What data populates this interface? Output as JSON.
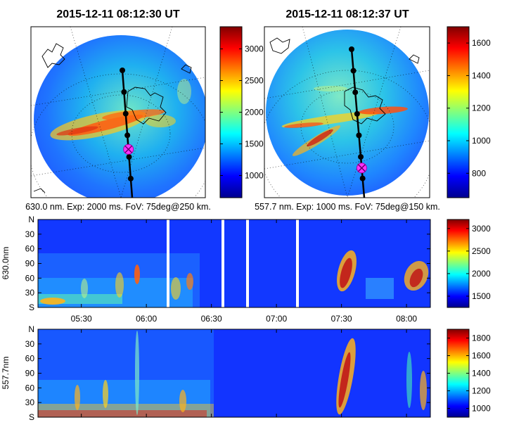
{
  "figure": {
    "titles": [
      "2015-12-11 08:12:30 UT",
      "2015-12-11 08:12:37 UT"
    ],
    "captions": [
      "630.0 nm. Exp: 2000 ms. FoV: 75deg@250 km.",
      "557.7 nm. Exp: 1000 ms. FoV: 75deg@150 km."
    ]
  },
  "chart_data": [
    {
      "type": "heatmap",
      "title": "2015-12-11 08:12:30 UT",
      "subtitle": "630.0 nm. Exp: 2000 ms. FoV: 75deg@250 km.",
      "colorbar_ticks": [
        "1000",
        "1500",
        "2000",
        "2500",
        "3000"
      ],
      "colorbar_range": [
        650,
        3350
      ],
      "track_points": 6,
      "marker": "magenta-x"
    },
    {
      "type": "heatmap",
      "title": "2015-12-11 08:12:37 UT",
      "subtitle": "557.7 nm. Exp: 1000 ms. FoV: 75deg@150 km.",
      "colorbar_ticks": [
        "800",
        "1000",
        "1200",
        "1400",
        "1600"
      ],
      "colorbar_range": [
        650,
        1700
      ],
      "track_points": 7,
      "marker": "magenta-x"
    },
    {
      "type": "heatmap",
      "ylabel": "630.0nm",
      "y_ticks": [
        "N",
        "30",
        "60",
        "90",
        "60",
        "30",
        "S"
      ],
      "x_ticks": [
        "05:30",
        "06:00",
        "06:30",
        "07:00",
        "07:30",
        "08:00"
      ],
      "colorbar_ticks": [
        "1500",
        "2000",
        "2500",
        "3000"
      ],
      "colorbar_range": [
        1250,
        3200
      ],
      "data_gaps_ut": [
        "06:13",
        "06:39",
        "06:51",
        "07:13"
      ]
    },
    {
      "type": "heatmap",
      "ylabel": "557.7nm",
      "y_ticks": [
        "N",
        "30",
        "60",
        "90",
        "60",
        "30",
        "S"
      ],
      "x_ticks": [
        "05:30",
        "06:00",
        "06:30",
        "07:00",
        "07:30",
        "08:00"
      ],
      "colorbar_ticks": [
        "1000",
        "1200",
        "1400",
        "1600",
        "1800"
      ],
      "colorbar_range": [
        900,
        1900
      ]
    }
  ]
}
